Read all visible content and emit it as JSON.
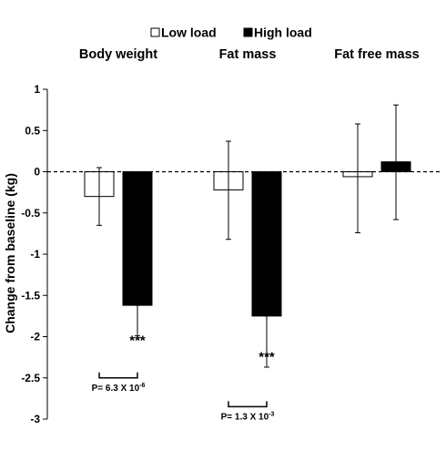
{
  "chart_data": {
    "type": "bar",
    "ylabel": "Change from baseline (kg)",
    "ylim": [
      -3,
      1
    ],
    "yticks": [
      {
        "value": 1,
        "label": "1"
      },
      {
        "value": 0.5,
        "label": "0.5"
      },
      {
        "value": 0,
        "label": "0"
      },
      {
        "value": -0.5,
        "label": "-0.5"
      },
      {
        "value": -1,
        "label": "-1"
      },
      {
        "value": -1.5,
        "label": "-1.5"
      },
      {
        "value": -2,
        "label": "-2"
      },
      {
        "value": -2.5,
        "label": "-2.5"
      },
      {
        "value": -3,
        "label": "-3"
      }
    ],
    "categories": [
      "Body weight",
      "Fat mass",
      "Fat free mass"
    ],
    "legend": {
      "position": "top-center"
    },
    "series": [
      {
        "name": "Low load",
        "color": "#ffffff",
        "values": [
          -0.3,
          -0.22,
          -0.06
        ],
        "error_low": [
          -0.65,
          -0.82,
          -0.74
        ],
        "error_high": [
          0.05,
          0.37,
          0.58
        ]
      },
      {
        "name": "High load",
        "color": "#000000",
        "values": [
          -1.62,
          -1.75,
          0.12
        ],
        "error_low": [
          -1.99,
          -2.37,
          -0.58
        ],
        "error_high": [
          -1.62,
          -1.75,
          0.81
        ]
      }
    ],
    "significance": [
      {
        "category": "Body weight",
        "stars": "***",
        "y": -2.1,
        "p_base": "P= 6.3 X 10",
        "p_exp": "-6",
        "bracket_y": -2.5
      },
      {
        "category": "Fat mass",
        "stars": "***",
        "y": -2.3,
        "p_base": "P= 1.3 X 10",
        "p_exp": "-3",
        "bracket_y": -2.85
      }
    ],
    "reference_line": {
      "value": 0,
      "style": "dashed"
    }
  }
}
